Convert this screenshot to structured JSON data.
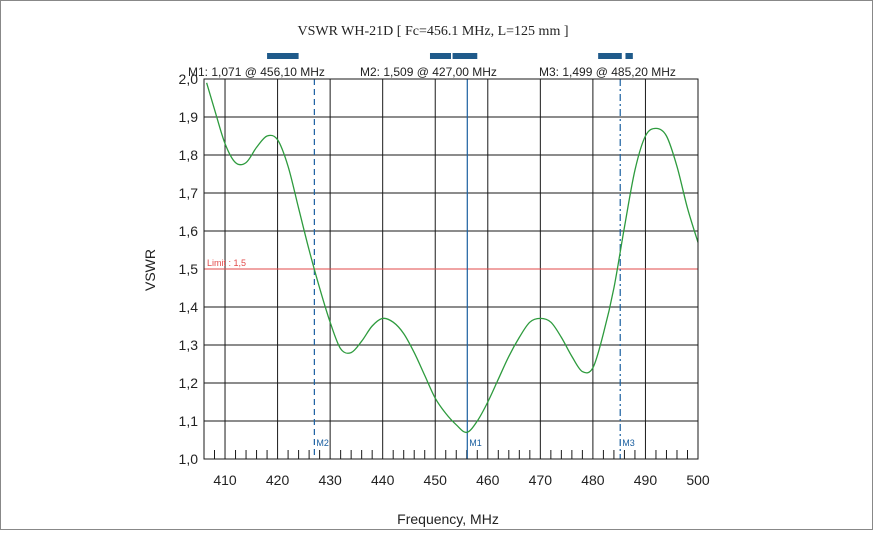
{
  "chart_data": {
    "type": "line",
    "title": "VSWR WH-21D [ Fc=456.1 MHz, L=125 mm ]",
    "xlabel": "Frequency, MHz",
    "ylabel": "VSWR",
    "xlim": [
      406,
      500
    ],
    "ylim": [
      1.0,
      2.0
    ],
    "x_ticks": [
      410,
      420,
      430,
      440,
      450,
      460,
      470,
      480,
      490,
      500
    ],
    "x_tick_labels": [
      "410",
      "420",
      "430",
      "440",
      "450",
      "460",
      "470",
      "480",
      "490",
      "500"
    ],
    "y_ticks": [
      1.0,
      1.1,
      1.2,
      1.3,
      1.4,
      1.5,
      1.6,
      1.7,
      1.8,
      1.9,
      2.0
    ],
    "y_tick_labels": [
      "1,0",
      "1,1",
      "1,2",
      "1,3",
      "1,4",
      "1,5",
      "1,6",
      "1,7",
      "1,8",
      "1,9",
      "2,0"
    ],
    "grid": true,
    "series": [
      {
        "color": "#2e9b3e",
        "x": [
          406.5,
          408,
          410,
          412,
          414,
          416,
          418,
          420,
          422,
          424,
          426,
          428,
          430,
          432,
          434,
          436,
          438,
          440,
          442,
          444,
          446,
          448,
          450,
          452,
          454,
          456,
          458,
          460,
          462,
          464,
          466,
          468,
          470,
          472,
          474,
          476,
          478,
          480,
          482,
          484,
          486,
          488,
          490,
          492,
          494,
          496,
          498,
          500
        ],
        "y": [
          1.99,
          1.92,
          1.83,
          1.78,
          1.78,
          1.82,
          1.85,
          1.84,
          1.77,
          1.66,
          1.55,
          1.45,
          1.36,
          1.29,
          1.28,
          1.31,
          1.35,
          1.37,
          1.36,
          1.33,
          1.28,
          1.22,
          1.16,
          1.12,
          1.09,
          1.07,
          1.1,
          1.15,
          1.21,
          1.27,
          1.32,
          1.36,
          1.37,
          1.36,
          1.32,
          1.27,
          1.23,
          1.24,
          1.33,
          1.45,
          1.61,
          1.76,
          1.85,
          1.87,
          1.85,
          1.77,
          1.66,
          1.57
        ]
      }
    ],
    "limit": {
      "value": 1.5,
      "label": "Limit : 1,5",
      "color": "#e24a4a"
    },
    "markers": [
      {
        "label": "M1",
        "x": 456.1,
        "style": "solid",
        "readout": "M1: 1,071  @ 456,10 MHz"
      },
      {
        "label": "M2",
        "x": 427.0,
        "style": "dashed",
        "readout": "M2: 1,509  @ 427,00 MHz"
      },
      {
        "label": "M3",
        "x": 485.2,
        "style": "dashdot",
        "readout": "M3: 1,499  @ 485,20 MHz"
      }
    ],
    "band_bars": [
      {
        "x0": 418.0,
        "x1": 424.0
      },
      {
        "x0": 449.0,
        "x1": 453.0
      },
      {
        "x0": 453.3,
        "x1": 458.0
      },
      {
        "x0": 481.0,
        "x1": 485.5
      },
      {
        "x0": 486.2,
        "x1": 487.6
      }
    ],
    "colors": {
      "grid": "#1a1a1a",
      "marker": "#1a5fa0",
      "band": "#1f5a8a",
      "curve": "#2e9b3e"
    }
  }
}
